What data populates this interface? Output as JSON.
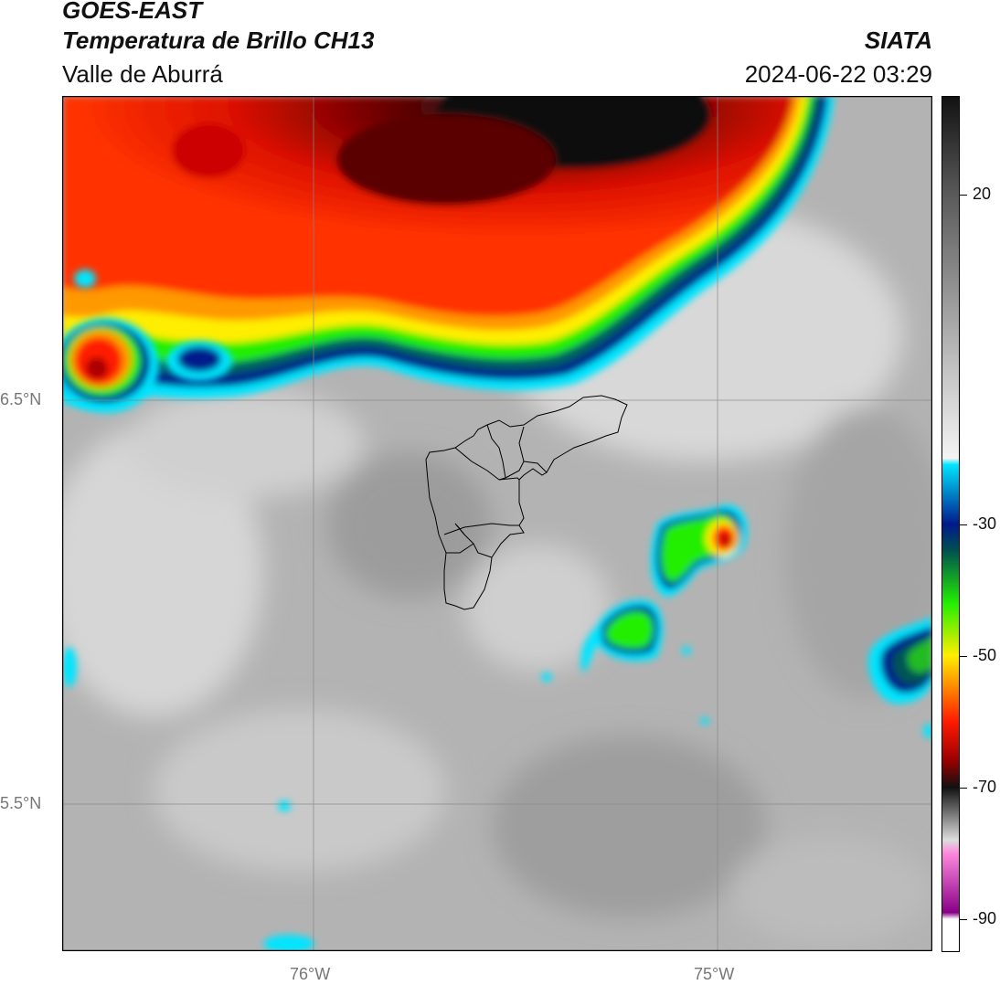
{
  "header": {
    "satellite": "GOES-EAST",
    "product": "Temperatura de Brillo CH13",
    "region": "Valle de Aburrá",
    "brand": "SIATA",
    "timestamp": "2024-06-22 03:29"
  },
  "map": {
    "lat_labels": [
      "6.5°N",
      "5.5°N"
    ],
    "lon_labels": [
      "76°W",
      "75°W"
    ],
    "colors": {
      "frame": "#000000",
      "grid": "#888888",
      "boundary": "#000000"
    }
  },
  "colorbar": {
    "tick_labels": [
      "20",
      "-30",
      "-50",
      "-70",
      "-90"
    ],
    "tick_values": [
      20,
      -30,
      -50,
      -70,
      -90
    ],
    "range": [
      -95,
      35
    ],
    "stops": [
      {
        "v": 35,
        "c": "#111111"
      },
      {
        "v": 20,
        "c": "#5a5a5a"
      },
      {
        "v": -5,
        "c": "#bdbdbd"
      },
      {
        "v": -20,
        "c": "#f4f4f4"
      },
      {
        "v": -21,
        "c": "#00e5ff"
      },
      {
        "v": -30,
        "c": "#001a8c"
      },
      {
        "v": -34,
        "c": "#005050"
      },
      {
        "v": -42,
        "c": "#22ee00"
      },
      {
        "v": -50,
        "c": "#ffee00"
      },
      {
        "v": -60,
        "c": "#ff1a00"
      },
      {
        "v": -66,
        "c": "#990000"
      },
      {
        "v": -70,
        "c": "#111111"
      },
      {
        "v": -78,
        "c": "#dddddd"
      },
      {
        "v": -80,
        "c": "#ff88dd"
      },
      {
        "v": -89,
        "c": "#880088"
      },
      {
        "v": -90,
        "c": "#ffffff"
      }
    ]
  }
}
